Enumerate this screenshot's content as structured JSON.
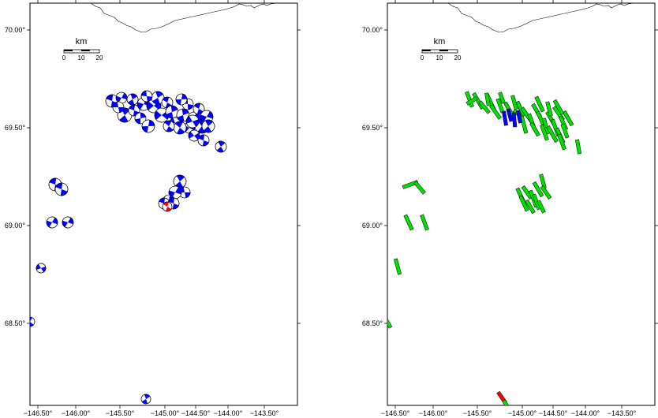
{
  "x_tick_labels": [
    "−146.50°",
    "−146.00°",
    "−145.50°",
    "−145.00°",
    "−144.50°",
    "−144.00°",
    "−143.50°"
  ],
  "y_tick_labels": [
    "70.00°",
    "69.50°",
    "69.00°",
    "68.50°"
  ],
  "scale_bar": {
    "title": "km",
    "labels": [
      "0",
      "10",
      "20"
    ]
  },
  "colors": {
    "mechanism_fill": "#0000ff",
    "highlight_fill": "#ff0000",
    "axis_green": "#00e000",
    "coastline": "#000000"
  },
  "panels": [
    {
      "id": "left",
      "content": "focal-mechanism beachballs"
    },
    {
      "id": "right",
      "content": "slip-direction bars"
    }
  ]
}
